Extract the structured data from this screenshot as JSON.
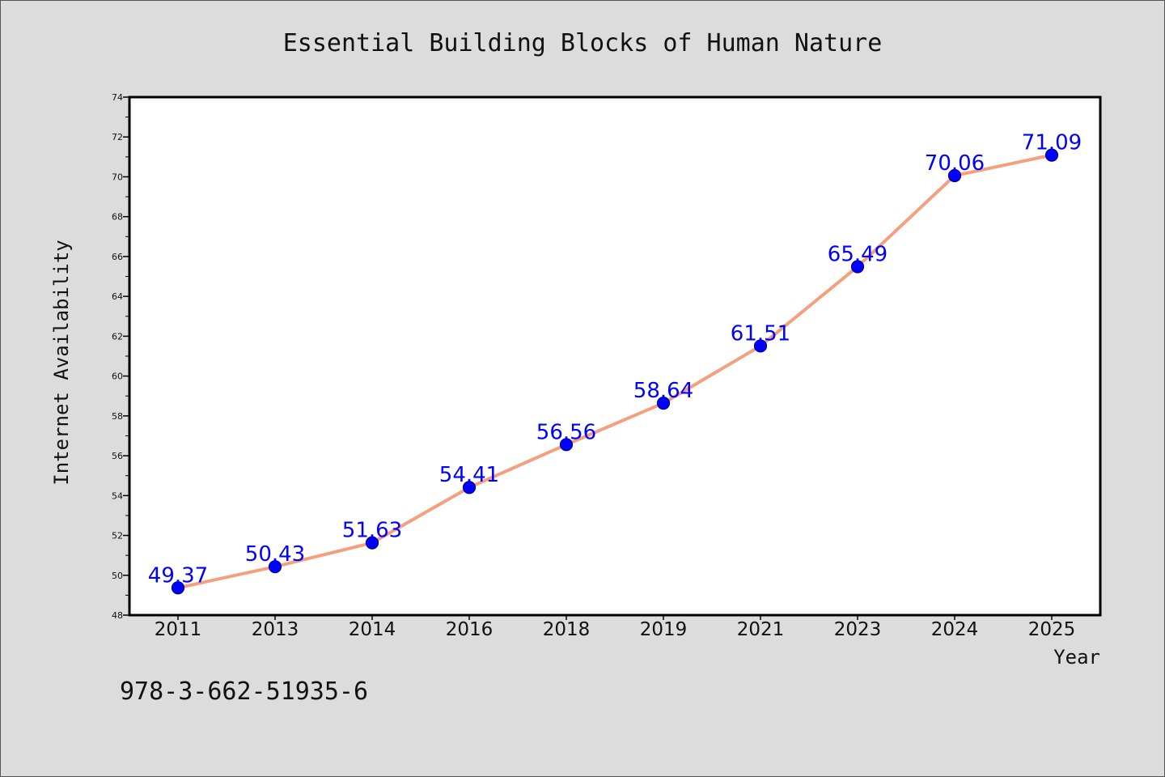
{
  "chart_data": {
    "type": "line",
    "title": "Essential Building Blocks of Human Nature",
    "xlabel": "Year",
    "ylabel": "Internet Availability",
    "categories": [
      "2011",
      "2013",
      "2014",
      "2016",
      "2018",
      "2019",
      "2021",
      "2023",
      "2024",
      "2025"
    ],
    "series": [
      {
        "values": [
          49.37,
          50.43,
          51.63,
          54.41,
          56.56,
          58.64,
          61.51,
          65.49,
          70.06,
          71.09
        ],
        "data_labels": [
          "49.37",
          "50.43",
          "51.63",
          "54.41",
          "56.56",
          "58.64",
          "61.51",
          "65.49",
          "70.06",
          "71.09"
        ]
      }
    ],
    "ylim": [
      48,
      74
    ],
    "yticks": [
      48,
      50,
      52,
      54,
      56,
      58,
      60,
      62,
      64,
      66,
      68,
      70,
      72,
      74
    ],
    "grid": false,
    "legend": "none",
    "colors": {
      "line": "#f4a07e",
      "marker": "#0000ff",
      "data_label": "#0000ff",
      "background": "#dcdcdc",
      "plot_area": "#ffffff"
    }
  },
  "footer": {
    "isbn": "978-3-662-51935-6"
  }
}
